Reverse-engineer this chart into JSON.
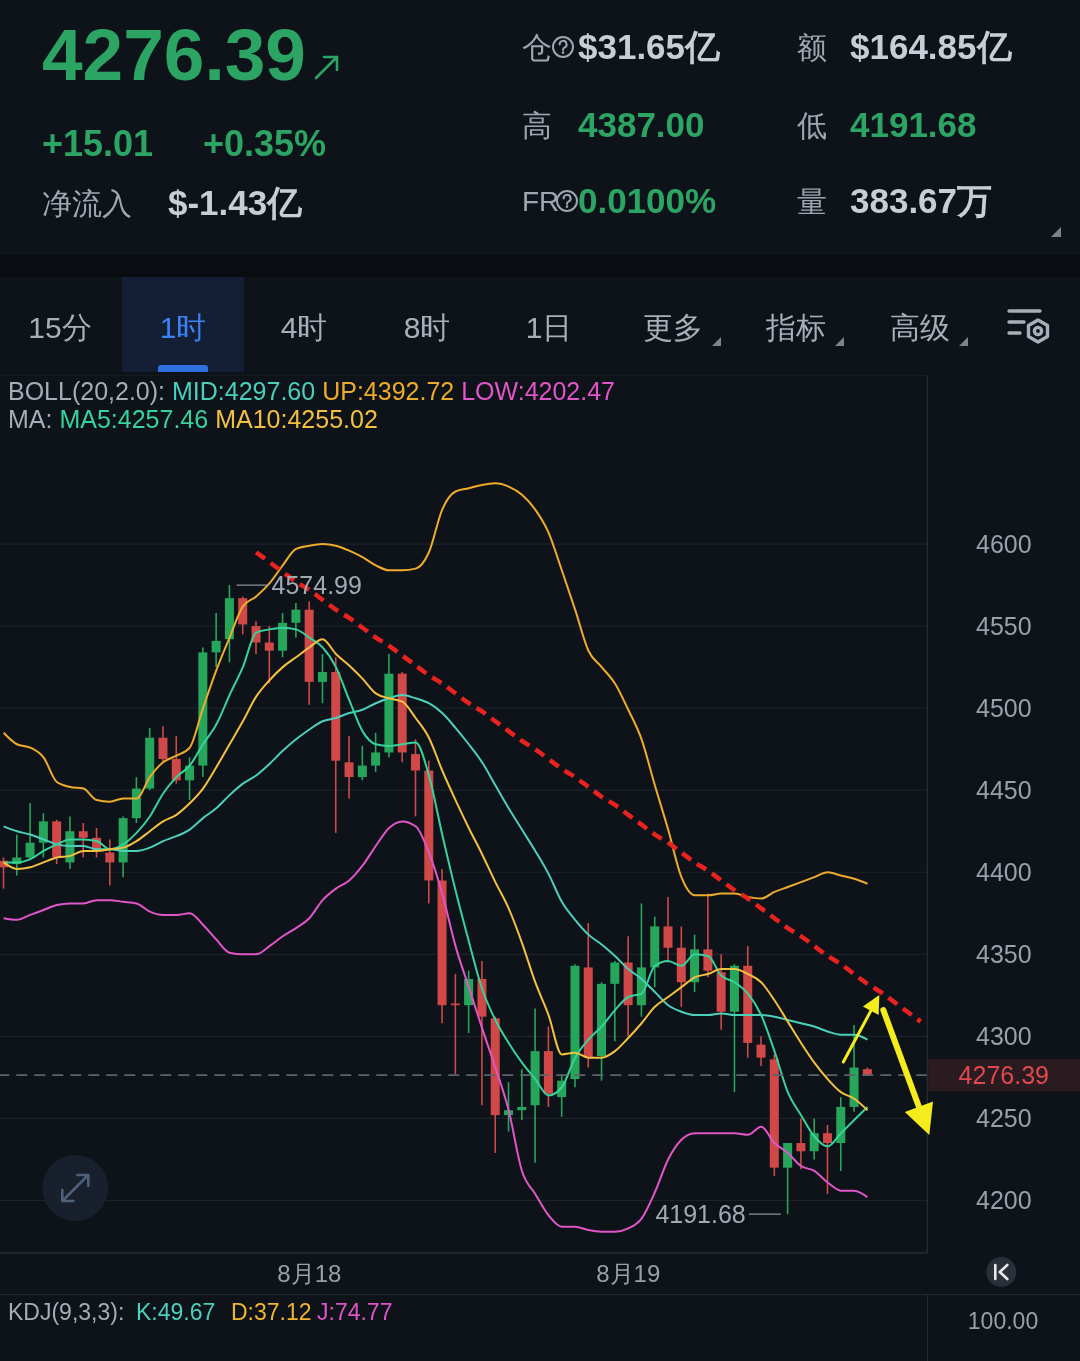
{
  "chart_data": [
    {
      "type": "other",
      "annotations": [
        "4276.39",
        "+15.01",
        "+0.35%",
        "净流入",
        "$-1.43亿",
        "仓",
        "$31.65亿",
        "额",
        "$164.85亿",
        "高",
        "4387.00",
        "低",
        "4191.68",
        "FR",
        "0.0100%",
        "量",
        "383.67万"
      ]
    },
    {
      "type": "other",
      "annotations": [
        "15分",
        "1时",
        "4时",
        "8时",
        "1日",
        "更多",
        "指标",
        "高级"
      ]
    },
    {
      "type": "candlestick",
      "categories": [
        null,
        null,
        null,
        null,
        null,
        null,
        null,
        null,
        null,
        null,
        null,
        null,
        null,
        null,
        null,
        null,
        null,
        null,
        null,
        null,
        null,
        null,
        null,
        "8月18",
        null,
        null,
        null,
        null,
        null,
        null,
        null,
        null,
        null,
        null,
        null,
        null,
        null,
        null,
        null,
        null,
        null,
        null,
        null,
        null,
        null,
        null,
        null,
        "8月19",
        null,
        null,
        null,
        null,
        null,
        null,
        null,
        null,
        null,
        null,
        null,
        null,
        null,
        null,
        null,
        null,
        null,
        null,
        null,
        null,
        null,
        null
      ],
      "ohlc": [
        [
          4407,
          4409,
          4390,
          4403
        ],
        [
          4405,
          4423,
          4398,
          4409
        ],
        [
          4409,
          4442,
          4408,
          4418
        ],
        [
          4418,
          4436,
          4409,
          4431
        ],
        [
          4431,
          4432,
          4405,
          4409
        ],
        [
          4406,
          4434,
          4402,
          4425
        ],
        [
          4425,
          4430,
          4409,
          4421
        ],
        [
          4421,
          4427,
          4409,
          4413
        ],
        [
          4412,
          4420,
          4392,
          4406
        ],
        [
          4406,
          4434,
          4397,
          4433
        ],
        [
          4433,
          4458,
          4430,
          4451
        ],
        [
          4451,
          4488,
          4450,
          4482
        ],
        [
          4482,
          4489,
          4467,
          4469
        ],
        [
          4469,
          4483,
          4454,
          4456
        ],
        [
          4456,
          4470,
          4444,
          4465
        ],
        [
          4465,
          4537,
          4458,
          4534
        ],
        [
          4534,
          4558,
          4525,
          4541
        ],
        [
          4542,
          4574.99,
          4528,
          4567
        ],
        [
          4567,
          4568,
          4545,
          4551
        ],
        [
          4550,
          4553,
          4533,
          4540
        ],
        [
          4540,
          4550,
          4515,
          4535
        ],
        [
          4535,
          4558,
          4531,
          4552
        ],
        [
          4552,
          4564,
          4543,
          4560
        ],
        [
          4560,
          4565,
          4502,
          4516
        ],
        [
          4516,
          4533,
          4503,
          4522
        ],
        [
          4522,
          4531,
          4424,
          4468
        ],
        [
          4467,
          4483,
          4445,
          4458
        ],
        [
          4458,
          4477,
          4456,
          4465
        ],
        [
          4465,
          4485,
          4461,
          4473
        ],
        [
          4473,
          4533,
          4470,
          4521
        ],
        [
          4521,
          4522,
          4467,
          4473
        ],
        [
          4472,
          4481,
          4434,
          4462
        ],
        [
          4462,
          4468,
          4381,
          4395
        ],
        [
          4395,
          4402,
          4308,
          4319
        ],
        [
          4320,
          4338,
          4277,
          4319
        ],
        [
          4319,
          4340,
          4302,
          4335
        ],
        [
          4335,
          4346,
          4258,
          4312
        ],
        [
          4311,
          4312,
          4229,
          4252
        ],
        [
          4252,
          4272,
          4242,
          4255
        ],
        [
          4255,
          4280,
          4249,
          4257
        ],
        [
          4258,
          4317,
          4223,
          4291
        ],
        [
          4291,
          4306,
          4257,
          4265
        ],
        [
          4263,
          4277,
          4251,
          4273
        ],
        [
          4274,
          4344,
          4269,
          4343
        ],
        [
          4342,
          4369,
          4281,
          4287
        ],
        [
          4288,
          4333,
          4273,
          4332
        ],
        [
          4332,
          4346,
          4297,
          4345
        ],
        [
          4345,
          4361,
          4300,
          4319
        ],
        [
          4319,
          4381,
          4312,
          4342
        ],
        [
          4342,
          4373,
          4330,
          4367
        ],
        [
          4367,
          4385,
          4345,
          4354
        ],
        [
          4354,
          4367,
          4318,
          4333
        ],
        [
          4333,
          4362,
          4327,
          4353
        ],
        [
          4353,
          4387,
          4336,
          4340
        ],
        [
          4339,
          4350,
          4304,
          4315
        ],
        [
          4315,
          4344,
          4266,
          4343
        ],
        [
          4343,
          4355,
          4287,
          4296
        ],
        [
          4295,
          4300,
          4282,
          4287
        ],
        [
          4286,
          4289,
          4215,
          4220
        ],
        [
          4220,
          4235,
          4191.68,
          4235
        ],
        [
          4235,
          4250,
          4219,
          4230
        ],
        [
          4230,
          4250,
          4225,
          4241
        ],
        [
          4241,
          4246,
          4204,
          4235
        ],
        [
          4235,
          4263,
          4218,
          4257
        ],
        [
          4257,
          4307,
          4254,
          4281
        ],
        [
          4280,
          4281,
          4276,
          4276.39
        ],
        null,
        null,
        null,
        null
      ],
      "colors": [
        "#d04848",
        "#26a65b",
        "#26a65b",
        "#26a65b",
        "#d04848",
        "#26a65b",
        "#d04848",
        "#d04848",
        "#d04848",
        "#26a65b",
        "#26a65b",
        "#26a65b",
        "#d04848",
        "#d04848",
        "#26a65b",
        "#26a65b",
        "#26a65b",
        "#26a65b",
        "#d04848",
        "#d04848",
        "#d04848",
        "#26a65b",
        "#26a65b",
        "#d04848",
        "#26a65b",
        "#d04848",
        "#d04848",
        "#26a65b",
        "#26a65b",
        "#26a65b",
        "#d04848",
        "#d04848",
        "#d04848",
        "#d04848",
        "#d04848",
        "#26a65b",
        "#d04848",
        "#d04848",
        "#26a65b",
        "#26a65b",
        "#26a65b",
        "#d04848",
        "#26a65b",
        "#26a65b",
        "#d04848",
        "#26a65b",
        "#26a65b",
        "#d04848",
        "#26a65b",
        "#26a65b",
        "#d04848",
        "#d04848",
        "#26a65b",
        "#d04848",
        "#d04848",
        "#26a65b",
        "#d04848",
        "#d04848",
        "#d04848",
        "#26a65b",
        "#d04848",
        "#26a65b",
        "#d04848",
        "#26a65b",
        "#26a65b",
        "#d04848",
        null,
        null,
        null,
        null
      ],
      "series": [
        {
          "name": "MID:4297.60",
          "type": "line",
          "color": "#4ccfbb",
          "values": [
            4428,
            4425,
            4423,
            4420,
            4417,
            4416,
            4416,
            4414,
            4414,
            4413,
            4413,
            4415,
            4419,
            4422,
            4426,
            4433,
            4439,
            4447,
            4454,
            4459,
            4466,
            4474,
            4481,
            4487,
            4492,
            4494,
            4497,
            4499,
            4503,
            4506,
            4508,
            4506,
            4503,
            4497,
            4488,
            4478,
            4467,
            4453,
            4439,
            4426,
            4413,
            4399,
            4382,
            4371,
            4362,
            4356,
            4349,
            4341,
            4335,
            4327,
            4319,
            4315,
            4313,
            4313,
            4314,
            4313,
            4313,
            4313,
            4312,
            4310,
            4308,
            4306,
            4303,
            4301,
            4301,
            4298,
            null,
            null,
            null,
            null
          ]
        },
        {
          "name": "UP:4392.72",
          "type": "line",
          "color": "#eeac2c",
          "values": [
            4485,
            4478,
            4476,
            4470,
            4455,
            4452,
            4451,
            4444,
            4443,
            4445,
            4445,
            4458,
            4467,
            4471,
            4476,
            4500,
            4523,
            4543,
            4562,
            4568,
            4576,
            4587,
            4597,
            4599,
            4600,
            4599,
            4596,
            4592,
            4587,
            4584,
            4584,
            4585,
            4595,
            4621,
            4632,
            4634,
            4636,
            4637,
            4635,
            4630,
            4621,
            4607,
            4584,
            4560,
            4535,
            4525,
            4515,
            4499,
            4481,
            4453,
            4426,
            4397,
            4386,
            4386,
            4387,
            4387,
            4385,
            4384,
            4388,
            4391,
            4394,
            4397,
            4400,
            4398,
            4396,
            4393,
            null,
            null,
            null,
            null
          ]
        },
        {
          "name": "LOW:4202.47",
          "type": "line",
          "color": "#e056c8",
          "values": [
            4372,
            4371,
            4374,
            4377,
            4380,
            4381,
            4381,
            4383,
            4383,
            4382,
            4381,
            4376,
            4374,
            4374,
            4375,
            4368,
            4359,
            4351,
            4350,
            4350,
            4355,
            4361,
            4366,
            4372,
            4383,
            4390,
            4395,
            4404,
            4416,
            4427,
            4431,
            4428,
            4412,
            4387,
            4355,
            4330,
            4305,
            4281,
            4255,
            4218,
            4204,
            4191,
            4184,
            4184,
            4182,
            4181,
            4181,
            4183,
            4189,
            4205,
            4225,
            4237,
            4241,
            4241,
            4241,
            4241,
            4240,
            4245,
            4235,
            4229,
            4221,
            4218,
            4211,
            4206,
            4206,
            4202,
            null,
            null,
            null,
            null
          ]
        },
        {
          "name": "MA5:4257.46",
          "type": "line",
          "color": "#36d39c",
          "values": [
            4406,
            4406,
            4408,
            4413,
            4417,
            4420,
            4420,
            4419,
            4414,
            4417,
            4424,
            4434,
            4448,
            4458,
            4465,
            4478,
            4490,
            4508,
            4525,
            4546,
            4548,
            4549,
            4548,
            4543,
            4537,
            4525,
            4505,
            4486,
            4478,
            4477,
            4478,
            4479,
            4459,
            4423,
            4389,
            4358,
            4329,
            4310,
            4296,
            4284,
            4274,
            4264,
            4269,
            4287,
            4298,
            4306,
            4316,
            4324,
            4326,
            4343,
            4346,
            4343,
            4350,
            4349,
            4337,
            4333,
            4326,
            4313,
            4291,
            4266,
            4252,
            4239,
            4233,
            4241,
            4249,
            4257,
            null,
            null,
            null,
            null
          ]
        },
        {
          "name": "MA10:4255.02",
          "type": "line",
          "color": "#f3c040",
          "values": [
            4406,
            4402,
            4403,
            4406,
            4409,
            4410,
            4413,
            4413,
            4414,
            4415,
            4419,
            4425,
            4431,
            4435,
            4442,
            4451,
            4464,
            4478,
            4492,
            4507,
            4517,
            4525,
            4531,
            4537,
            4542,
            4533,
            4526,
            4518,
            4509,
            4506,
            4504,
            4494,
            4482,
            4462,
            4444,
            4427,
            4411,
            4394,
            4378,
            4357,
            4333,
            4313,
            4289,
            4290,
            4287,
            4287,
            4291,
            4299,
            4308,
            4318,
            4324,
            4330,
            4336,
            4338,
            4341,
            4341,
            4338,
            4333,
            4322,
            4309,
            4296,
            4284,
            4274,
            4266,
            4262,
            4255,
            null,
            null,
            null,
            null
          ]
        },
        {
          "type": "line",
          "color": "#e8231f",
          "line_style": "dashed",
          "values": [
            null,
            null,
            null,
            null,
            null,
            null,
            null,
            null,
            null,
            null,
            null,
            null,
            null,
            null,
            null,
            null,
            null,
            null,
            null,
            4595,
            4589,
            4583,
            4577,
            4572,
            4566,
            4560,
            4555,
            4549,
            4543,
            4538,
            4532,
            4526,
            4520,
            4515,
            4509,
            4503,
            4498,
            4492,
            4486,
            4480,
            4475,
            4469,
            4463,
            4458,
            4452,
            4446,
            4441,
            4435,
            4429,
            4423,
            4418,
            4412,
            4406,
            4401,
            4395,
            4389,
            4384,
            4378,
            4372,
            4366,
            4361,
            4355,
            4349,
            4344,
            4338,
            4332,
            4327,
            4321,
            4315,
            4309
          ]
        }
      ],
      "ylim": [
        4168,
        4703
      ],
      "yticks": [
        4200,
        4250,
        4300,
        4350,
        4400,
        4450,
        4500,
        4550,
        4600
      ],
      "grid": "y",
      "legend": "top left",
      "ref_lines": [
        {
          "axis": "y",
          "value": 4276.39,
          "color": "#5d636e",
          "line_style": "dashed"
        }
      ],
      "annotations": [
        "BOLL(20,2.0):",
        "MA:",
        "4574.99",
        "4191.68",
        "4276.39"
      ]
    },
    {
      "type": "other",
      "annotations": [
        "KDJ(9,3,3):",
        "K:49.67",
        "D:37.12",
        "J:74.77",
        "100.00"
      ]
    }
  ]
}
